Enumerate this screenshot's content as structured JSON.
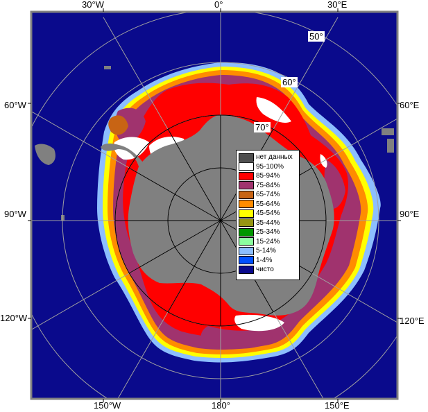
{
  "map": {
    "longitude_labels": {
      "top": [
        "30°W",
        "0°",
        "30°E"
      ],
      "left": [
        "60°W",
        "90°W",
        "120°W"
      ],
      "right": [
        "60°E",
        "90°E",
        "120°E"
      ],
      "bottom": [
        "150°W",
        "180°",
        "150°E"
      ]
    },
    "latitude_labels": [
      "50°",
      "60°",
      "70°"
    ],
    "colors": {
      "frame": "#808080",
      "ocean": "#0a0a8c",
      "land": "#808080",
      "grid": "#a0a0a0",
      "meridian": "#000000"
    }
  },
  "legend": {
    "items": [
      {
        "label": "нет данных",
        "color": "#4d4d4d"
      },
      {
        "label": "95-100%",
        "color": "#ffffff"
      },
      {
        "label": "85-94%",
        "color": "#ff0000"
      },
      {
        "label": "75-84%",
        "color": "#a0336e"
      },
      {
        "label": "65-74%",
        "color": "#c86414"
      },
      {
        "label": "55-64%",
        "color": "#ff8c00"
      },
      {
        "label": "45-54%",
        "color": "#ffff00"
      },
      {
        "label": "35-44%",
        "color": "#969614"
      },
      {
        "label": "25-34%",
        "color": "#009600"
      },
      {
        "label": "15-24%",
        "color": "#8cffa0"
      },
      {
        "label": "5-14%",
        "color": "#8cbeff"
      },
      {
        "label": "1-4%",
        "color": "#0050ff"
      },
      {
        "label": "чисто",
        "color": "#0a0a8c"
      }
    ]
  }
}
